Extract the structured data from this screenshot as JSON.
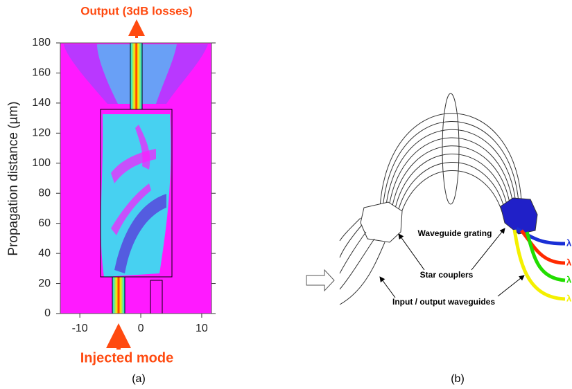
{
  "panel_a": {
    "y_label": "Propagation distance (µm)",
    "xlim": [
      -13.2,
      11.6
    ],
    "ylim": [
      0,
      180
    ],
    "xticks": [
      -10,
      0,
      10
    ],
    "yticks": [
      0,
      20,
      40,
      60,
      80,
      100,
      120,
      140,
      160,
      180
    ],
    "top_annotation": "Output (3dB losses)",
    "bottom_annotation": "Injected mode",
    "caption": "(a)"
  },
  "panel_b": {
    "grating_label": "Waveguide grating",
    "couplers_label": "Star couplers",
    "waveguides_label": "Input / output waveguides",
    "outputs": [
      {
        "label": "λ",
        "color": "#1a2fd6"
      },
      {
        "label": "λ",
        "color": "#ff2a00"
      },
      {
        "label": "λ",
        "color": "#22dd00"
      },
      {
        "label": "λ",
        "color": "#f4f000"
      }
    ],
    "caption": "(b)"
  }
}
